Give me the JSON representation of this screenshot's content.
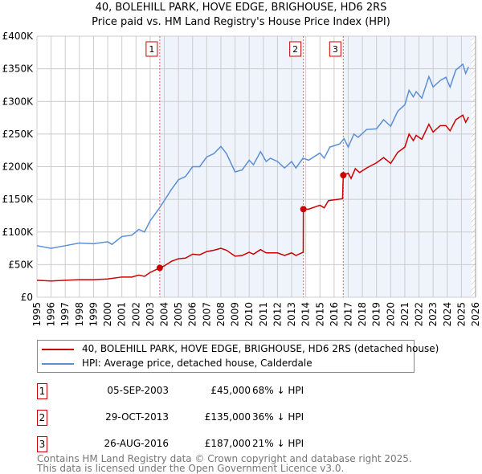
{
  "chart_data": {
    "type": "line",
    "title": "40, BOLEHILL PARK, HOVE EDGE, BRIGHOUSE, HD6 2RS",
    "subtitle": "Price paid vs. HM Land Registry's House Price Index (HPI)",
    "xlim": [
      1995,
      2026
    ],
    "ylim": [
      0,
      400000
    ],
    "x_ticks": [
      "1995",
      "1996",
      "1997",
      "1998",
      "1999",
      "2000",
      "2001",
      "2002",
      "2003",
      "2004",
      "2005",
      "2006",
      "2007",
      "2008",
      "2009",
      "2010",
      "2011",
      "2012",
      "2013",
      "2014",
      "2015",
      "2016",
      "2017",
      "2018",
      "2019",
      "2020",
      "2021",
      "2022",
      "2023",
      "2024",
      "2025",
      "2026"
    ],
    "y_ticks": [
      {
        "v": 0,
        "label": "£0"
      },
      {
        "v": 50000,
        "label": "£50K"
      },
      {
        "v": 100000,
        "label": "£100K"
      },
      {
        "v": 150000,
        "label": "£150K"
      },
      {
        "v": 200000,
        "label": "£200K"
      },
      {
        "v": 250000,
        "label": "£250K"
      },
      {
        "v": 300000,
        "label": "£300K"
      },
      {
        "v": 350000,
        "label": "£350K"
      },
      {
        "v": 400000,
        "label": "£400K"
      }
    ],
    "grid": true,
    "series": [
      {
        "name": "40, BOLEHILL PARK, HOVE EDGE, BRIGHOUSE, HD6 2RS (detached house)",
        "color": "#cc0000",
        "x": [
          1995,
          1996,
          1997,
          1998,
          1999,
          2000,
          2001,
          2001.7,
          2002.2,
          2002.6,
          2003,
          2003.68,
          2004,
          2004.5,
          2005,
          2005.5,
          2006,
          2006.5,
          2007,
          2007.5,
          2008,
          2008.4,
          2009,
          2009.5,
          2010,
          2010.3,
          2010.8,
          2011.2,
          2012,
          2012.5,
          2013,
          2013.3,
          2013.82,
          2013.83,
          2014.2,
          2015,
          2015.3,
          2015.6,
          2016.6,
          2016.65,
          2017,
          2017.2,
          2017.5,
          2017.8,
          2018.3,
          2019,
          2019.5,
          2020,
          2020.5,
          2021,
          2021.3,
          2021.6,
          2021.8,
          2022.2,
          2022.7,
          2023,
          2023.5,
          2023.9,
          2024.2,
          2024.6,
          2025.1,
          2025.3,
          2025.5
        ],
        "y": [
          26000,
          25000,
          26000,
          27000,
          27000,
          28000,
          31000,
          31000,
          34000,
          32000,
          38000,
          45000,
          48000,
          55000,
          59000,
          60000,
          66000,
          65000,
          70000,
          72000,
          75000,
          72000,
          63000,
          64000,
          69000,
          66000,
          73000,
          68000,
          68000,
          64000,
          68000,
          64000,
          69000,
          135000,
          135000,
          141000,
          137000,
          148000,
          151000,
          187000,
          190000,
          182000,
          197000,
          191000,
          198000,
          206000,
          214000,
          205000,
          222000,
          230000,
          250000,
          240000,
          248000,
          242000,
          265000,
          253000,
          263000,
          263000,
          255000,
          272000,
          279000,
          268000,
          276000
        ]
      },
      {
        "name": "HPI: Average price, detached house, Calderdale",
        "color": "#5b8fd4",
        "x": [
          1995,
          1996,
          1997,
          1998,
          1999,
          2000,
          2000.3,
          2001,
          2001.7,
          2002.2,
          2002.6,
          2003,
          2003.6,
          2004,
          2004.5,
          2005,
          2005.5,
          2006,
          2006.5,
          2007,
          2007.5,
          2008,
          2008.4,
          2009,
          2009.5,
          2010,
          2010.3,
          2010.8,
          2011.2,
          2011.5,
          2012,
          2012.5,
          2013,
          2013.3,
          2013.8,
          2014.2,
          2015,
          2015.3,
          2015.7,
          2016.4,
          2016.7,
          2017,
          2017.4,
          2017.7,
          2018.3,
          2019,
          2019.5,
          2020,
          2020.5,
          2021,
          2021.3,
          2021.6,
          2021.8,
          2022.2,
          2022.7,
          2023,
          2023.5,
          2023.9,
          2024.2,
          2024.6,
          2025.1,
          2025.3,
          2025.5
        ],
        "y": [
          79000,
          75000,
          79000,
          83000,
          82000,
          85000,
          81000,
          93000,
          95000,
          104000,
          100000,
          117000,
          135000,
          148000,
          165000,
          180000,
          185000,
          200000,
          200000,
          215000,
          220000,
          231000,
          220000,
          192000,
          195000,
          210000,
          203000,
          223000,
          208000,
          213000,
          208000,
          198000,
          208000,
          198000,
          213000,
          210000,
          221000,
          213000,
          230000,
          235000,
          243000,
          230000,
          250000,
          245000,
          257000,
          258000,
          272000,
          262000,
          285000,
          295000,
          317000,
          307000,
          315000,
          305000,
          338000,
          322000,
          332000,
          337000,
          322000,
          348000,
          357000,
          343000,
          353000
        ]
      }
    ],
    "sales": [
      {
        "label": "1",
        "x": 2003.68,
        "y": 45000
      },
      {
        "label": "2",
        "x": 2013.83,
        "y": 135000
      },
      {
        "label": "3",
        "x": 2016.65,
        "y": 187000
      }
    ],
    "shaded_ranges": [
      [
        2003.68,
        2013.83
      ],
      [
        2016.65,
        2026
      ]
    ],
    "hatched_from": 2025.7
  },
  "legend": {
    "items": [
      "40, BOLEHILL PARK, HOVE EDGE, BRIGHOUSE, HD6 2RS (detached house)",
      "HPI: Average price, detached house, Calderdale"
    ]
  },
  "transactions": [
    {
      "num": "1",
      "date": "05-SEP-2003",
      "price": "£45,000",
      "hpi": "68% ↓ HPI"
    },
    {
      "num": "2",
      "date": "29-OCT-2013",
      "price": "£135,000",
      "hpi": "36% ↓ HPI"
    },
    {
      "num": "3",
      "date": "26-AUG-2016",
      "price": "£187,000",
      "hpi": "21% ↓ HPI"
    }
  ],
  "footer": {
    "line1": "Contains HM Land Registry data © Crown copyright and database right 2025.",
    "line2": "This data is licensed under the Open Government Licence v3.0."
  }
}
